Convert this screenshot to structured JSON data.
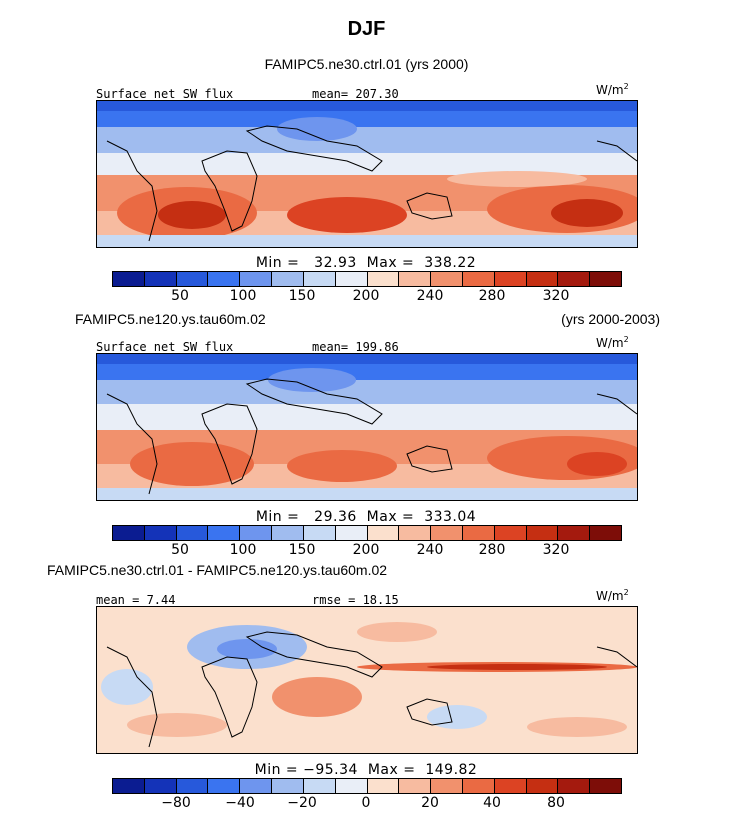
{
  "title": "DJF",
  "colors": {
    "scale": [
      "#0b1c91",
      "#1433b8",
      "#2759db",
      "#3a74f0",
      "#6e95ee",
      "#a0bcef",
      "#c7daf4",
      "#e9eef7",
      "#fbe0cd",
      "#f7bba0",
      "#f1916d",
      "#ea6a43",
      "#dc4323",
      "#c52f12",
      "#a41a0e",
      "#7d0d08"
    ],
    "land_outline": "#000000"
  },
  "chart_data": [
    {
      "type": "heatmap",
      "panel": "top",
      "header": "FAMIPC5.ne30.ctrl.01 (yrs 2000)",
      "header_left": "",
      "header_right": "",
      "variable": "Surface net SW flux",
      "stat_left": "",
      "stat_right": "mean= 207.30",
      "units": "W/m",
      "units_exp": "2",
      "minmax": "Min =   32.93  Max =  338.22",
      "colorbar_ticks": [
        "50",
        "100",
        "150",
        "200",
        "240",
        "280",
        "320"
      ],
      "stats": {
        "mean": 207.3,
        "min": 32.93,
        "max": 338.22
      }
    },
    {
      "type": "heatmap",
      "panel": "middle",
      "header": "",
      "header_left": "FAMIPC5.ne120.ys.tau60m.02",
      "header_right": "(yrs 2000-2003)",
      "variable": "Surface net SW flux",
      "stat_left": "",
      "stat_right": "mean=  199.86",
      "units": "W/m",
      "units_exp": "2",
      "minmax": "Min =   29.36  Max =  333.04",
      "colorbar_ticks": [
        "50",
        "100",
        "150",
        "200",
        "240",
        "280",
        "320"
      ],
      "stats": {
        "mean": 199.86,
        "min": 29.36,
        "max": 333.04
      }
    },
    {
      "type": "heatmap",
      "panel": "bottom",
      "header": "",
      "header_left": "FAMIPC5.ne30.ctrl.01 - FAMIPC5.ne120.ys.tau60m.02",
      "header_right": "",
      "variable": "",
      "stat_left": "mean =   7.44",
      "stat_right": "rmse =  18.15",
      "units": "W/m",
      "units_exp": "2",
      "minmax": "Min = −95.34  Max =  149.82",
      "colorbar_ticks": [
        "−80",
        "−40",
        "−20",
        "0",
        "20",
        "40",
        "80"
      ],
      "stats": {
        "mean": 7.44,
        "rmse": 18.15,
        "min": -95.34,
        "max": 149.82
      }
    }
  ]
}
